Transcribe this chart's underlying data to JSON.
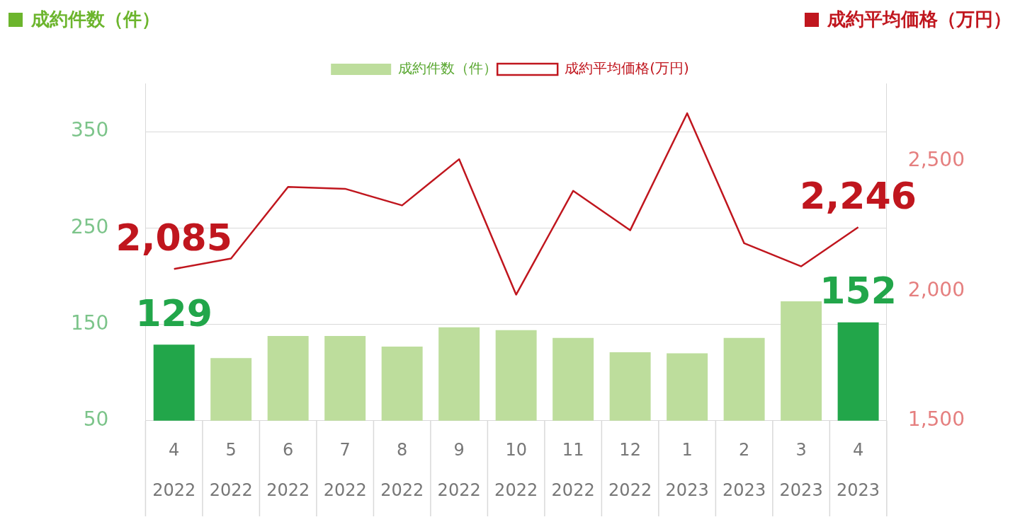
{
  "chart_data": {
    "type": "bar",
    "ylabel": "成約件数（件）",
    "y2label": "成約平均価格（万円）",
    "categories": [
      "4 2022",
      "5 2022",
      "6 2022",
      "7 2022",
      "8 2022",
      "9 2022",
      "10 2022",
      "11 2022",
      "12 2022",
      "1 2023",
      "2 2023",
      "3 2023",
      "4 2023"
    ],
    "series": [
      {
        "name": "成約件数（件）",
        "color": "#bddd9c",
        "colors": [
          "#22a64a",
          "#bddd9c",
          "#bddd9c",
          "#bddd9c",
          "#bddd9c",
          "#bddd9c",
          "#bddd9c",
          "#bddd9c",
          "#bddd9c",
          "#bddd9c",
          "#bddd9c",
          "#bddd9c",
          "#22a64a"
        ],
        "values": [
          129,
          115,
          138,
          138,
          127,
          147,
          144,
          136,
          121,
          120,
          136,
          174,
          152
        ],
        "value_labels": [
          "129",
          null,
          null,
          null,
          null,
          null,
          null,
          null,
          null,
          null,
          null,
          null,
          "152"
        ]
      },
      {
        "name": "成約平均価格(万円)",
        "type": "line",
        "axis": "y2",
        "color": "#c0161e",
        "values": [
          2085,
          2125,
          2401,
          2394,
          2330,
          2508,
          1986,
          2386,
          2234,
          2685,
          2184,
          2095,
          2246
        ],
        "value_labels": [
          "2,085",
          null,
          null,
          null,
          null,
          null,
          null,
          null,
          null,
          null,
          null,
          null,
          "2,246"
        ]
      }
    ],
    "ylim": [
      50,
      400
    ],
    "yticks": [
      50,
      150,
      250,
      350
    ],
    "y2lim": [
      1500,
      2800
    ],
    "y2ticks": [
      {
        "value": 1500,
        "label": "1,500"
      },
      {
        "value": 2000,
        "label": "2,000"
      },
      {
        "value": 2500,
        "label": "2,500"
      }
    ],
    "grid": "y",
    "legend": "top",
    "marker": "none",
    "line_style": "solid"
  }
}
